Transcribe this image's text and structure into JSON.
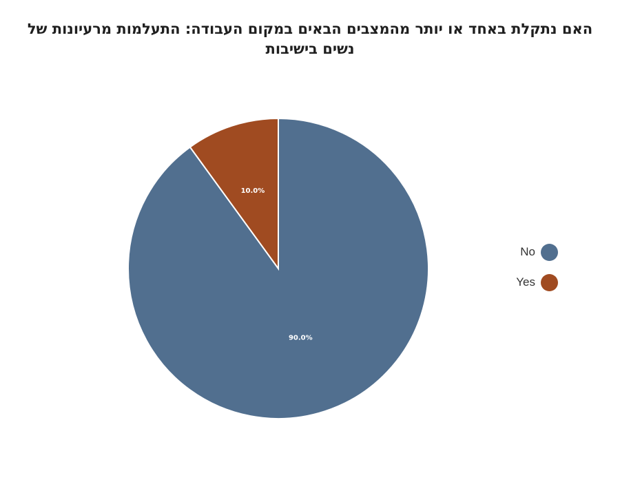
{
  "chart_data": {
    "type": "pie",
    "title": "האם נתקלת באחד או יותר מהמצבים הבאים במקום העבודה: התעלמות מרעיונות של נשים בישיבות",
    "slices": [
      {
        "label": "No",
        "value": 90.0,
        "value_label": "90.0%",
        "color": "#516f8f"
      },
      {
        "label": "Yes",
        "value": 10.0,
        "value_label": "10.0%",
        "color": "#a04b21"
      }
    ],
    "legend_position": "right",
    "start_angle": "top",
    "direction": "clockwise"
  }
}
